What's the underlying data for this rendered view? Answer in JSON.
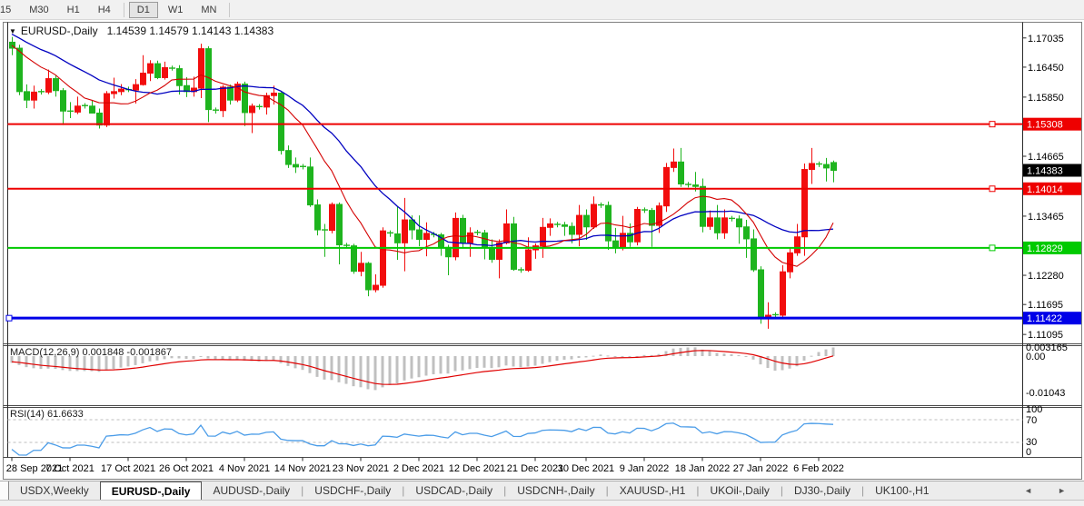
{
  "toolbar": {
    "items": [
      "15",
      "M30",
      "H1",
      "H4",
      "|",
      "D1",
      "W1",
      "MN",
      "|"
    ],
    "active": "D1"
  },
  "chart": {
    "symbol": "EURUSD-,Daily",
    "ohlc_text": "1.14539 1.14579 1.14143 1.14383",
    "macd_label": "MACD(12,26,9) 0.001848 -0.001867",
    "rsi_label": "RSI(14) 61.6633"
  },
  "tabs": {
    "items": [
      "USDX,Weekly",
      "EURUSD-,Daily",
      "AUDUSD-,Daily",
      "USDCHF-,Daily",
      "USDCAD-,Daily",
      "USDCNH-,Daily",
      "XAUUSD-,H1",
      "UKOil-,Daily",
      "DJ30-,Daily",
      "UK100-,H1"
    ],
    "active": "EURUSD-,Daily",
    "nav_left": "◄",
    "nav_right": "►"
  },
  "chart_data": {
    "type": "candlestick",
    "title": "EURUSD-,Daily",
    "current_ohlc": {
      "open": 1.14539,
      "high": 1.14579,
      "low": 1.14143,
      "close": 1.14383
    },
    "current_price_label": "1.14383",
    "y_axis_ticks": [
      "1.17035",
      "1.16450",
      "1.15850",
      "1.14665",
      "1.13465",
      "1.12280",
      "1.11695",
      "1.11095"
    ],
    "price_levels": [
      {
        "label": "1.15308",
        "value": 1.15308,
        "color": "red",
        "handle": "right"
      },
      {
        "label": "1.14014",
        "value": 1.14014,
        "color": "red",
        "handle": "right"
      },
      {
        "label": "1.12829",
        "value": 1.12829,
        "color": "green",
        "handle": "right"
      },
      {
        "label": "1.11422",
        "value": 1.11422,
        "color": "blue",
        "handle": "left"
      }
    ],
    "x_axis_labels": [
      [
        "28 Sep 2021",
        0
      ],
      [
        "7 Oct 2021",
        8
      ],
      [
        "17 Oct 2021",
        16
      ],
      [
        "26 Oct 2021",
        24
      ],
      [
        "4 Nov 2021",
        32
      ],
      [
        "14 Nov 2021",
        40
      ],
      [
        "23 Nov 2021",
        48
      ],
      [
        "2 Dec 2021",
        56
      ],
      [
        "12 Dec 2021",
        64
      ],
      [
        "21 Dec 2021",
        72
      ],
      [
        "30 Dec 2021",
        79
      ],
      [
        "9 Jan 2022",
        87
      ],
      [
        "18 Jan 2022",
        95
      ],
      [
        "27 Jan 2022",
        103
      ],
      [
        "6 Feb 2022",
        111
      ]
    ],
    "macd": {
      "label": "MACD(12,26,9)",
      "main_value": 0.001848,
      "signal_value": -0.001867,
      "params": [
        12,
        26,
        9
      ],
      "axis_labels": [
        "0.003165",
        "0.00",
        "-0.01043"
      ]
    },
    "rsi": {
      "label": "RSI(14)",
      "value": 61.6633,
      "period": 14,
      "axis_labels": [
        "100",
        "70",
        "30",
        "0"
      ],
      "levels": [
        70,
        30
      ]
    },
    "colors": {
      "bull": "#f20d0d",
      "bear": "#1eb41e",
      "ma_fast": "#d40000",
      "ma_slow": "#0000c0",
      "macd_hist": "#c0c0c0",
      "macd_signal": "#e00000",
      "rsi": "#4a9ce8",
      "level_red": "#ee0000",
      "level_green": "#00ca00",
      "level_blue": "#0000e8",
      "current_badge": "#000000"
    },
    "ma_seed": [
      1.1757,
      1.1752,
      1.1748,
      1.1744,
      1.174,
      1.1736,
      1.1732,
      1.1728,
      1.1724,
      1.172,
      1.1714,
      1.1708,
      1.1702,
      1.1697,
      1.1693,
      1.169,
      1.1686,
      1.1682,
      1.1676,
      1.167
    ],
    "candles": [
      [
        1.1695,
        1.17055,
        1.1669,
        1.1683
      ],
      [
        1.1683,
        1.169,
        1.1589,
        1.1596
      ],
      [
        1.1596,
        1.16105,
        1.1563,
        1.1579
      ],
      [
        1.1579,
        1.1608,
        1.1562,
        1.1595
      ],
      [
        1.1596,
        1.1601,
        1.159,
        1.1595
      ],
      [
        1.1595,
        1.164,
        1.1591,
        1.1622
      ],
      [
        1.1622,
        1.1629,
        1.1586,
        1.1598
      ],
      [
        1.1598,
        1.1603,
        1.1529,
        1.1557
      ],
      [
        1.1557,
        1.1575,
        1.1543,
        1.1555
      ],
      [
        1.1555,
        1.1586,
        1.1551,
        1.1567
      ],
      [
        1.1568,
        1.1573,
        1.1562,
        1.1567
      ],
      [
        1.1567,
        1.1579,
        1.1552,
        1.1553
      ],
      [
        1.1553,
        1.1562,
        1.1522,
        1.1529
      ],
      [
        1.1529,
        1.1597,
        1.1525,
        1.1592
      ],
      [
        1.1592,
        1.1624,
        1.1582,
        1.1596
      ],
      [
        1.1596,
        1.1611,
        1.1589,
        1.1601
      ],
      [
        1.16,
        1.1606,
        1.1595,
        1.1599
      ],
      [
        1.1599,
        1.1621,
        1.1572,
        1.161
      ],
      [
        1.161,
        1.1669,
        1.1608,
        1.1633
      ],
      [
        1.1633,
        1.1659,
        1.1617,
        1.1652
      ],
      [
        1.1652,
        1.1658,
        1.1621,
        1.1624
      ],
      [
        1.1624,
        1.1656,
        1.162,
        1.1644
      ],
      [
        1.1643,
        1.1648,
        1.1638,
        1.1642
      ],
      [
        1.1642,
        1.1649,
        1.159,
        1.1608
      ],
      [
        1.1608,
        1.1625,
        1.1585,
        1.1596
      ],
      [
        1.1596,
        1.1626,
        1.1586,
        1.1603
      ],
      [
        1.1603,
        1.1692,
        1.1583,
        1.1682
      ],
      [
        1.1682,
        1.1687,
        1.1535,
        1.156
      ],
      [
        1.1559,
        1.1564,
        1.1552,
        1.1558
      ],
      [
        1.1558,
        1.1609,
        1.1545,
        1.1605
      ],
      [
        1.1605,
        1.161,
        1.157,
        1.1579
      ],
      [
        1.1579,
        1.1616,
        1.1575,
        1.1611
      ],
      [
        1.1611,
        1.1616,
        1.1527,
        1.1554
      ],
      [
        1.1554,
        1.1572,
        1.1513,
        1.1567
      ],
      [
        1.1566,
        1.1571,
        1.156,
        1.1565
      ],
      [
        1.1565,
        1.1594,
        1.155,
        1.1588
      ],
      [
        1.1588,
        1.1608,
        1.157,
        1.1593
      ],
      [
        1.1593,
        1.1595,
        1.147,
        1.1478
      ],
      [
        1.1478,
        1.1488,
        1.1443,
        1.145
      ],
      [
        1.145,
        1.1464,
        1.1433,
        1.1445
      ],
      [
        1.1446,
        1.1451,
        1.144,
        1.1445
      ],
      [
        1.1445,
        1.1464,
        1.1365,
        1.1369
      ],
      [
        1.1369,
        1.138,
        1.1308,
        1.1319
      ],
      [
        1.1319,
        1.1331,
        1.1265,
        1.1318
      ],
      [
        1.1318,
        1.1374,
        1.1312,
        1.137
      ],
      [
        1.137,
        1.1374,
        1.125,
        1.1289
      ],
      [
        1.1288,
        1.1293,
        1.1282,
        1.1287
      ],
      [
        1.1287,
        1.1291,
        1.1231,
        1.1236
      ],
      [
        1.1236,
        1.1275,
        1.1226,
        1.1252
      ],
      [
        1.1252,
        1.1255,
        1.1186,
        1.1199
      ],
      [
        1.1199,
        1.123,
        1.1194,
        1.1208
      ],
      [
        1.1208,
        1.1324,
        1.1203,
        1.1317
      ],
      [
        1.1313,
        1.1318,
        1.1305,
        1.1311
      ],
      [
        1.1311,
        1.1366,
        1.1259,
        1.1293
      ],
      [
        1.1293,
        1.1383,
        1.1236,
        1.1339
      ],
      [
        1.1339,
        1.1348,
        1.13,
        1.1319
      ],
      [
        1.1319,
        1.1348,
        1.1286,
        1.13
      ],
      [
        1.13,
        1.1334,
        1.1266,
        1.1312
      ],
      [
        1.131,
        1.1315,
        1.1304,
        1.1309
      ],
      [
        1.1309,
        1.1313,
        1.1267,
        1.1284
      ],
      [
        1.1284,
        1.1289,
        1.1228,
        1.1265
      ],
      [
        1.1265,
        1.1354,
        1.1258,
        1.1342
      ],
      [
        1.1342,
        1.1349,
        1.1283,
        1.1293
      ],
      [
        1.1293,
        1.1324,
        1.1265,
        1.1313
      ],
      [
        1.1314,
        1.1319,
        1.1308,
        1.1313
      ],
      [
        1.1313,
        1.1319,
        1.126,
        1.1284
      ],
      [
        1.1284,
        1.13,
        1.1253,
        1.126
      ],
      [
        1.126,
        1.13,
        1.1222,
        1.1293
      ],
      [
        1.1293,
        1.136,
        1.129,
        1.1331
      ],
      [
        1.1331,
        1.1345,
        1.1237,
        1.124
      ],
      [
        1.1239,
        1.1244,
        1.1233,
        1.1238
      ],
      [
        1.1238,
        1.1304,
        1.1235,
        1.1279
      ],
      [
        1.1279,
        1.1292,
        1.1261,
        1.1287
      ],
      [
        1.1287,
        1.1343,
        1.1263,
        1.1324
      ],
      [
        1.1324,
        1.1342,
        1.1307,
        1.1331
      ],
      [
        1.133,
        1.1335,
        1.1324,
        1.1329
      ],
      [
        1.1329,
        1.1335,
        1.1307,
        1.1326
      ],
      [
        1.1326,
        1.1334,
        1.1292,
        1.131
      ],
      [
        1.131,
        1.1369,
        1.1286,
        1.1348
      ],
      [
        1.1348,
        1.136,
        1.1299,
        1.1325
      ],
      [
        1.1325,
        1.1386,
        1.1321,
        1.137
      ],
      [
        1.1369,
        1.1374,
        1.1363,
        1.1368
      ],
      [
        1.1368,
        1.1376,
        1.1279,
        1.1297
      ],
      [
        1.1297,
        1.1323,
        1.1272,
        1.1285
      ],
      [
        1.1285,
        1.1347,
        1.1278,
        1.1312
      ],
      [
        1.1312,
        1.1332,
        1.1285,
        1.1295
      ],
      [
        1.1295,
        1.1365,
        1.1288,
        1.136
      ],
      [
        1.1359,
        1.1364,
        1.1353,
        1.1358
      ],
      [
        1.1358,
        1.1363,
        1.1285,
        1.1328
      ],
      [
        1.1328,
        1.1374,
        1.1313,
        1.1367
      ],
      [
        1.1367,
        1.1453,
        1.1355,
        1.1444
      ],
      [
        1.1444,
        1.1482,
        1.1435,
        1.1455
      ],
      [
        1.1455,
        1.1483,
        1.1405,
        1.1411
      ],
      [
        1.141,
        1.1415,
        1.1404,
        1.1409
      ],
      [
        1.1409,
        1.1435,
        1.1396,
        1.1406
      ],
      [
        1.1406,
        1.1422,
        1.1314,
        1.1326
      ],
      [
        1.1326,
        1.1358,
        1.1319,
        1.1343
      ],
      [
        1.1343,
        1.1369,
        1.13,
        1.1313
      ],
      [
        1.1313,
        1.136,
        1.1301,
        1.1343
      ],
      [
        1.1342,
        1.1347,
        1.1336,
        1.1341
      ],
      [
        1.1341,
        1.1348,
        1.1291,
        1.1325
      ],
      [
        1.1325,
        1.1339,
        1.1263,
        1.1301
      ],
      [
        1.1301,
        1.132,
        1.1235,
        1.1239
      ],
      [
        1.1239,
        1.1246,
        1.1131,
        1.1145
      ],
      [
        1.1145,
        1.1174,
        1.1121,
        1.1148
      ],
      [
        1.1149,
        1.1154,
        1.1143,
        1.1148
      ],
      [
        1.1148,
        1.1248,
        1.1144,
        1.1235
      ],
      [
        1.1235,
        1.1283,
        1.1222,
        1.1273
      ],
      [
        1.1273,
        1.1331,
        1.1267,
        1.1305
      ],
      [
        1.1305,
        1.1452,
        1.1267,
        1.144
      ],
      [
        1.144,
        1.1483,
        1.1411,
        1.1452
      ],
      [
        1.1451,
        1.1456,
        1.1445,
        1.145
      ],
      [
        1.145,
        1.1463,
        1.1416,
        1.1443
      ],
      [
        1.14539,
        1.14579,
        1.14143,
        1.14383
      ]
    ]
  }
}
